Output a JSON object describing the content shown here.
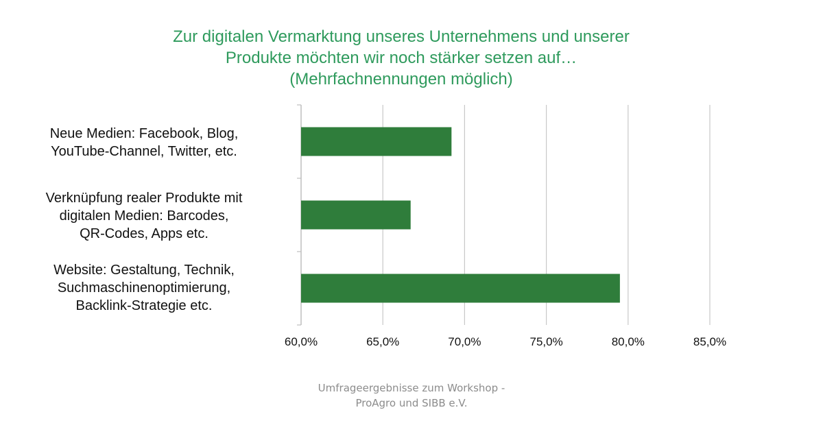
{
  "chart_data": {
    "type": "bar",
    "orientation": "horizontal",
    "title_lines": [
      "Zur digitalen Vermarktung unseres Unternehmens und unserer",
      "Produkte möchten wir noch stärker setzen auf…",
      "(Mehrfachnennungen möglich)"
    ],
    "categories": [
      {
        "lines": [
          "Neue Medien: Facebook, Blog,",
          "YouTube-Channel, Twitter, etc."
        ]
      },
      {
        "lines": [
          "Verknüpfung realer Produkte mit",
          "digitalen Medien: Barcodes,",
          "QR-Codes, Apps etc."
        ]
      },
      {
        "lines": [
          "Website: Gestaltung, Technik,",
          "Suchmaschinenoptimierung,",
          "Backlink-Strategie etc."
        ]
      }
    ],
    "values": [
      69.2,
      66.7,
      79.5
    ],
    "xlim": [
      60,
      85
    ],
    "xticks": [
      60,
      65,
      70,
      75,
      80,
      85
    ],
    "xtick_labels": [
      "60,0%",
      "65,0%",
      "70,0%",
      "75,0%",
      "80,0%",
      "85,0%"
    ],
    "grid": true,
    "bar_color": "#2f7d3b",
    "xlabel": "",
    "ylabel": ""
  },
  "footer": {
    "lines": [
      "Umfrageergebnisse zum Workshop -",
      "ProAgro und SIBB e.V."
    ]
  },
  "colors": {
    "title": "#2e9a5c",
    "grid": "#c8c8c8",
    "axis": "#bdbdbd",
    "footer": "#8c8c8c"
  }
}
